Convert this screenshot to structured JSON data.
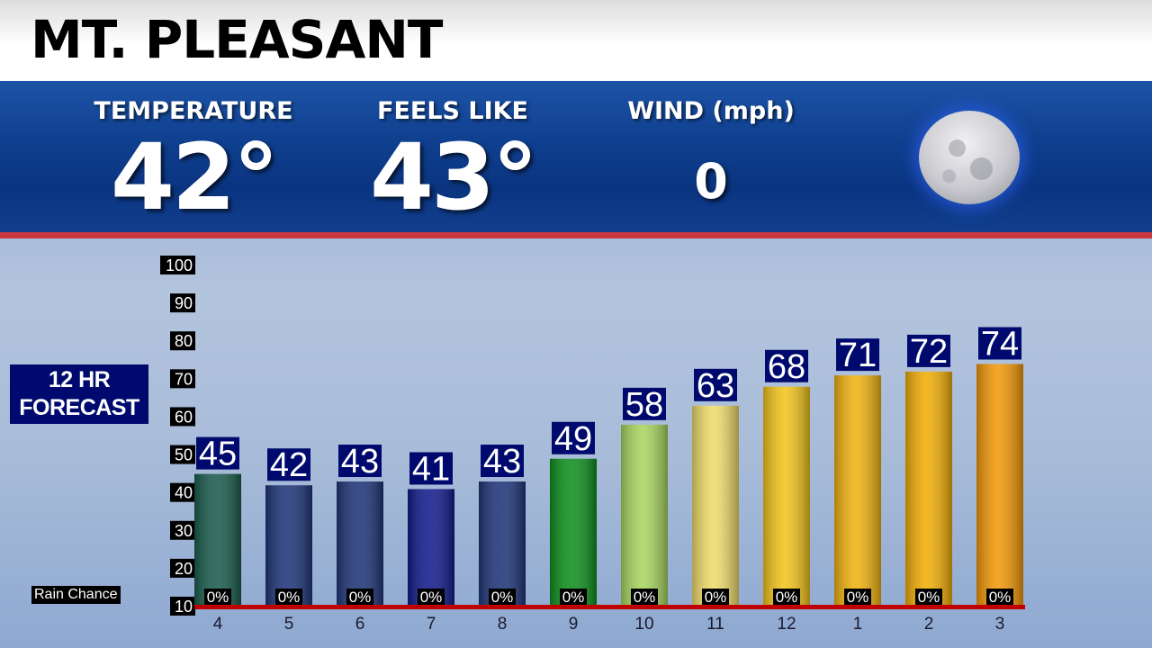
{
  "header": {
    "title": "MT. PLEASANT"
  },
  "conditions": {
    "temperature_label": "TEMPERATURE",
    "temperature_value": "42°",
    "feels_like_label": "FEELS LIKE",
    "feels_like_value": "43°",
    "wind_label": "WIND (mph)",
    "wind_value": "0",
    "sky_icon": "moon-icon"
  },
  "forecast": {
    "label_line1": "12 HR",
    "label_line2": "FORECAST",
    "rain_label": "Rain Chance"
  },
  "chart_data": {
    "type": "bar",
    "categories": [
      "4",
      "5",
      "6",
      "7",
      "8",
      "9",
      "10",
      "11",
      "12",
      "1",
      "2",
      "3"
    ],
    "values": [
      45,
      42,
      43,
      41,
      43,
      49,
      58,
      63,
      68,
      71,
      72,
      74
    ],
    "rain_chance": [
      "0%",
      "0%",
      "0%",
      "0%",
      "0%",
      "0%",
      "0%",
      "0%",
      "0%",
      "0%",
      "0%",
      "0%"
    ],
    "bar_colors": [
      "#1a5c4c",
      "#1f3578",
      "#1f3578",
      "#121c8c",
      "#1f3578",
      "#0f8f1e",
      "#a8d660",
      "#f0dc6c",
      "#f2c41c",
      "#f0b210",
      "#f2ae08",
      "#f29808"
    ],
    "yticks": [
      10,
      20,
      30,
      40,
      50,
      60,
      70,
      80,
      90,
      100
    ],
    "ylim": [
      10,
      100
    ],
    "baseline_color": "#c00000"
  }
}
